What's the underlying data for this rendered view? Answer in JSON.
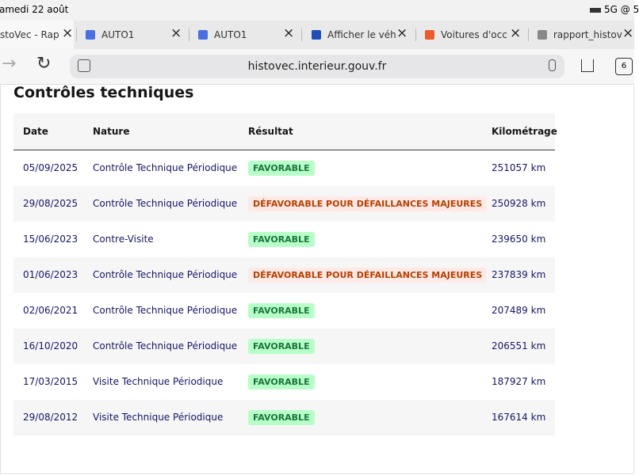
{
  "status_bar": {
    "time": "amedi 22 août",
    "indicators": "5G @ 5"
  },
  "tabs": [
    "stoVec - Rap",
    "AUTO1",
    "AUTO1",
    "Afficher le véh",
    "Voitures d'occ",
    "rapport_histov"
  ],
  "address_bar": {
    "url": "histovec.interieur.gouv.fr",
    "tab_count": "6"
  },
  "page": {
    "title": "Contrôles techniques",
    "table": {
      "headers": [
        "Date",
        "Nature",
        "Résultat",
        "Kilométrage"
      ],
      "rows": [
        {
          "date": "05/09/2025",
          "nature": "Contrôle Technique Périodique",
          "result": {
            "text": "FAVORABLE",
            "color": "#18753c",
            "background": "#b8fec9"
          },
          "mileage": "251057 km"
        },
        {
          "date": "29/08/2025",
          "nature": "Contrôle Technique Périodique",
          "result": {
            "text": "DÉFAVORABLE POUR DÉFAILLANCES MAJEURES",
            "color": "#b34000",
            "background": "#ffe9e6"
          },
          "mileage": "250928 km"
        },
        {
          "date": "15/06/2023",
          "nature": "Contre-Visite",
          "result": {
            "text": "FAVORABLE",
            "color": "#18753c",
            "background": "#b8fec9"
          },
          "mileage": "239650 km"
        },
        {
          "date": "01/06/2023",
          "nature": "Contrôle Technique Périodique",
          "result": {
            "text": "DÉFAVORABLE POUR DÉFAILLANCES MAJEURES",
            "color": "#b34000",
            "background": "#ffe9e6"
          },
          "mileage": "237839 km"
        },
        {
          "date": "02/06/2021",
          "nature": "Contrôle Technique Périodique",
          "result": {
            "text": "FAVORABLE",
            "color": "#18753c",
            "background": "#b8fec9"
          },
          "mileage": "207489 km"
        },
        {
          "date": "16/10/2020",
          "nature": "Contrôle Technique Périodique",
          "result": {
            "text": "FAVORABLE",
            "color": "#18753c",
            "background": "#b8fec9"
          },
          "mileage": "206551 km"
        },
        {
          "date": "17/03/2015",
          "nature": "Visite Technique Périodique",
          "result": {
            "text": "FAVORABLE",
            "color": "#18753c",
            "background": "#b8fec9"
          },
          "mileage": "187927 km"
        },
        {
          "date": "29/08/2012",
          "nature": "Visite Technique Périodique",
          "result": {
            "text": "FAVORABLE",
            "color": "#18753c",
            "background": "#b8fec9"
          },
          "mileage": "167614 km"
        }
      ]
    }
  }
}
